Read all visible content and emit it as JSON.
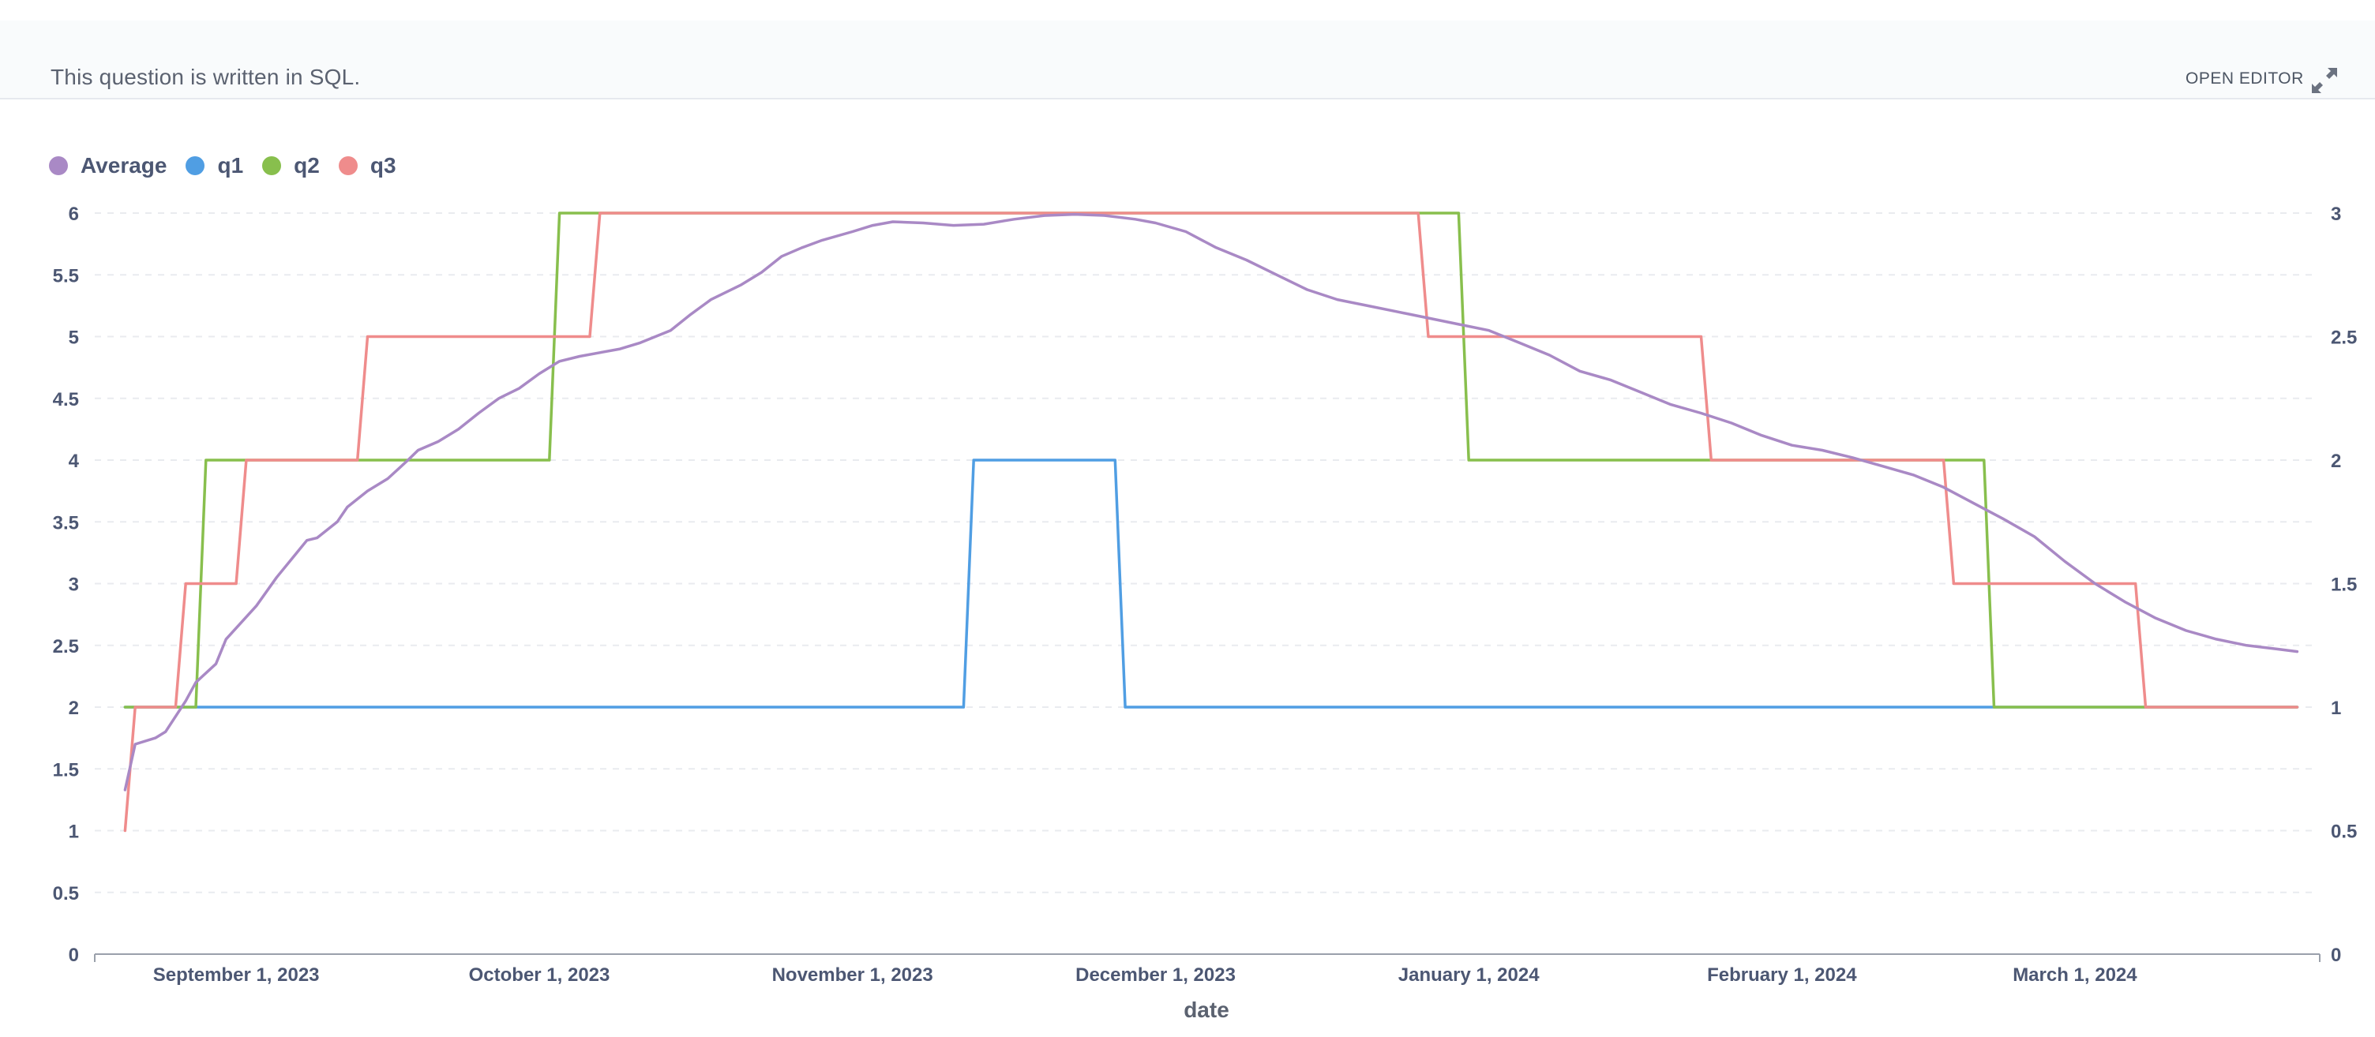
{
  "banner": {
    "text": "This question is written in SQL.",
    "open_editor_label": "OPEN EDITOR"
  },
  "icons": {
    "expand": "expand-arrows-icon"
  },
  "colors": {
    "average": "#a989c5",
    "q1": "#509ee3",
    "q2": "#88bf4d",
    "q3": "#ef8c8c",
    "axis_text": "#4c5773",
    "grid": "#e9ebef"
  },
  "chart_data": {
    "type": "line",
    "legend_position": "top-left",
    "xlabel": "date",
    "x_ticks": [
      "September 1, 2023",
      "October 1, 2023",
      "November 1, 2023",
      "December 1, 2023",
      "January 1, 2024",
      "February 1, 2024",
      "March 1, 2024"
    ],
    "x_range": [
      "2023-08-18",
      "2024-03-25"
    ],
    "y_left": {
      "ticks": [
        "0",
        "0.5",
        "1",
        "1.5",
        "2",
        "2.5",
        "3",
        "3.5",
        "4",
        "4.5",
        "5",
        "5.5",
        "6"
      ],
      "range": [
        0,
        6
      ]
    },
    "y_right": {
      "ticks": [
        "0",
        "0.5",
        "1",
        "1.5",
        "2",
        "2.5",
        "3"
      ],
      "range": [
        0,
        3
      ]
    },
    "grid": true,
    "series": [
      {
        "name": "Average",
        "axis": "left",
        "points": [
          [
            "2023-08-21",
            1.33
          ],
          [
            "2023-08-22",
            1.7
          ],
          [
            "2023-08-24",
            1.75
          ],
          [
            "2023-08-25",
            1.8
          ],
          [
            "2023-08-27",
            2.05
          ],
          [
            "2023-08-28",
            2.2
          ],
          [
            "2023-08-30",
            2.35
          ],
          [
            "2023-08-31",
            2.55
          ],
          [
            "2023-09-03",
            2.82
          ],
          [
            "2023-09-05",
            3.05
          ],
          [
            "2023-09-07",
            3.25
          ],
          [
            "2023-09-08",
            3.35
          ],
          [
            "2023-09-09",
            3.37
          ],
          [
            "2023-09-11",
            3.5
          ],
          [
            "2023-09-12",
            3.62
          ],
          [
            "2023-09-14",
            3.75
          ],
          [
            "2023-09-16",
            3.85
          ],
          [
            "2023-09-18",
            4.0
          ],
          [
            "2023-09-19",
            4.08
          ],
          [
            "2023-09-21",
            4.15
          ],
          [
            "2023-09-23",
            4.25
          ],
          [
            "2023-09-25",
            4.38
          ],
          [
            "2023-09-27",
            4.5
          ],
          [
            "2023-09-29",
            4.58
          ],
          [
            "2023-10-01",
            4.7
          ],
          [
            "2023-10-03",
            4.8
          ],
          [
            "2023-10-05",
            4.84
          ],
          [
            "2023-10-07",
            4.87
          ],
          [
            "2023-10-09",
            4.9
          ],
          [
            "2023-10-11",
            4.95
          ],
          [
            "2023-10-14",
            5.05
          ],
          [
            "2023-10-16",
            5.18
          ],
          [
            "2023-10-18",
            5.3
          ],
          [
            "2023-10-21",
            5.42
          ],
          [
            "2023-10-23",
            5.52
          ],
          [
            "2023-10-25",
            5.65
          ],
          [
            "2023-10-27",
            5.72
          ],
          [
            "2023-10-29",
            5.78
          ],
          [
            "2023-11-01",
            5.85
          ],
          [
            "2023-11-03",
            5.9
          ],
          [
            "2023-11-05",
            5.93
          ],
          [
            "2023-11-08",
            5.92
          ],
          [
            "2023-11-11",
            5.9
          ],
          [
            "2023-11-14",
            5.91
          ],
          [
            "2023-11-17",
            5.95
          ],
          [
            "2023-11-20",
            5.98
          ],
          [
            "2023-11-23",
            5.99
          ],
          [
            "2023-11-26",
            5.98
          ],
          [
            "2023-11-29",
            5.95
          ],
          [
            "2023-12-01",
            5.92
          ],
          [
            "2023-12-04",
            5.85
          ],
          [
            "2023-12-07",
            5.72
          ],
          [
            "2023-12-10",
            5.62
          ],
          [
            "2023-12-13",
            5.5
          ],
          [
            "2023-12-16",
            5.38
          ],
          [
            "2023-12-19",
            5.3
          ],
          [
            "2023-12-22",
            5.25
          ],
          [
            "2023-12-25",
            5.2
          ],
          [
            "2023-12-28",
            5.15
          ],
          [
            "2023-12-31",
            5.1
          ],
          [
            "2024-01-03",
            5.05
          ],
          [
            "2024-01-06",
            4.95
          ],
          [
            "2024-01-09",
            4.85
          ],
          [
            "2024-01-12",
            4.72
          ],
          [
            "2024-01-15",
            4.65
          ],
          [
            "2024-01-18",
            4.55
          ],
          [
            "2024-01-21",
            4.45
          ],
          [
            "2024-01-24",
            4.38
          ],
          [
            "2024-01-27",
            4.3
          ],
          [
            "2024-01-30",
            4.2
          ],
          [
            "2024-02-02",
            4.12
          ],
          [
            "2024-02-05",
            4.08
          ],
          [
            "2024-02-08",
            4.02
          ],
          [
            "2024-02-11",
            3.95
          ],
          [
            "2024-02-14",
            3.88
          ],
          [
            "2024-02-17",
            3.78
          ],
          [
            "2024-02-20",
            3.65
          ],
          [
            "2024-02-23",
            3.52
          ],
          [
            "2024-02-26",
            3.38
          ],
          [
            "2024-02-29",
            3.18
          ],
          [
            "2024-03-03",
            3.0
          ],
          [
            "2024-03-06",
            2.85
          ],
          [
            "2024-03-09",
            2.72
          ],
          [
            "2024-03-12",
            2.62
          ],
          [
            "2024-03-15",
            2.55
          ],
          [
            "2024-03-18",
            2.5
          ],
          [
            "2024-03-21",
            2.47
          ],
          [
            "2024-03-23",
            2.45
          ]
        ]
      },
      {
        "name": "q1",
        "axis": "right",
        "points": [
          [
            "2023-08-21",
            1
          ],
          [
            "2023-11-12",
            1
          ],
          [
            "2023-11-13",
            2
          ],
          [
            "2023-11-27",
            2
          ],
          [
            "2023-11-28",
            1
          ],
          [
            "2024-03-23",
            1
          ]
        ]
      },
      {
        "name": "q2",
        "axis": "right",
        "points": [
          [
            "2023-08-21",
            1
          ],
          [
            "2023-08-28",
            1
          ],
          [
            "2023-08-29",
            2
          ],
          [
            "2023-10-02",
            2
          ],
          [
            "2023-10-03",
            3
          ],
          [
            "2023-12-31",
            3
          ],
          [
            "2024-01-01",
            2
          ],
          [
            "2024-02-21",
            2
          ],
          [
            "2024-02-22",
            1
          ],
          [
            "2024-03-23",
            1
          ]
        ]
      },
      {
        "name": "q3",
        "axis": "right",
        "points": [
          [
            "2023-08-21",
            0.5
          ],
          [
            "2023-08-22",
            1
          ],
          [
            "2023-08-26",
            1
          ],
          [
            "2023-08-27",
            1.5
          ],
          [
            "2023-09-01",
            1.5
          ],
          [
            "2023-09-02",
            2
          ],
          [
            "2023-09-13",
            2
          ],
          [
            "2023-09-14",
            2.5
          ],
          [
            "2023-10-06",
            2.5
          ],
          [
            "2023-10-07",
            3
          ],
          [
            "2023-12-27",
            3
          ],
          [
            "2023-12-28",
            2.5
          ],
          [
            "2024-01-24",
            2.5
          ],
          [
            "2024-01-25",
            2
          ],
          [
            "2024-02-17",
            2
          ],
          [
            "2024-02-18",
            1.5
          ],
          [
            "2024-03-07",
            1.5
          ],
          [
            "2024-03-08",
            1
          ],
          [
            "2024-03-23",
            1
          ]
        ]
      }
    ]
  }
}
